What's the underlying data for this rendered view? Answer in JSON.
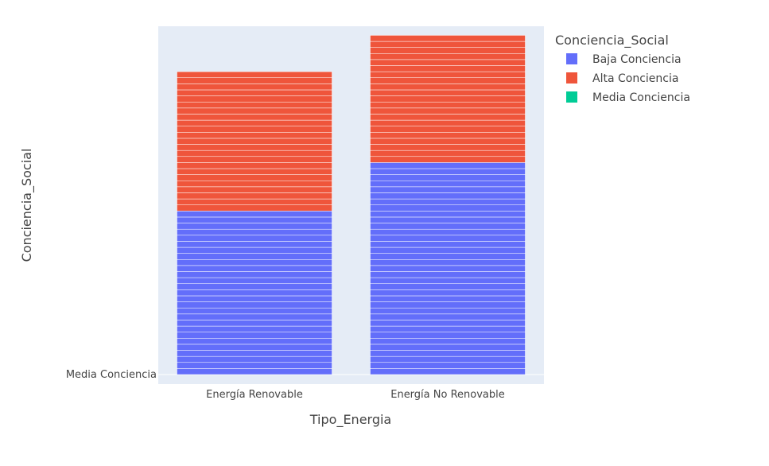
{
  "chart_data": {
    "type": "bar",
    "barmode": "stack",
    "categories": [
      "Energía Renovable",
      "Energía No Renovable"
    ],
    "xlabel": "Tipo_Energia",
    "ylabel": "Conciencia_Social",
    "y_tick_labels": [
      "Media Conciencia"
    ],
    "legend_title": "Conciencia_Social",
    "legend_position": "top-right",
    "grid": true,
    "series": [
      {
        "name": "Baja Conciencia",
        "color": "#636efa",
        "values": [
          27,
          35
        ]
      },
      {
        "name": "Alta Conciencia",
        "color": "#ef553b",
        "values": [
          23,
          21
        ]
      },
      {
        "name": "Media Conciencia",
        "color": "#00cc96",
        "values": [
          0,
          0
        ]
      }
    ],
    "ylim": [
      0,
      57.5
    ]
  }
}
